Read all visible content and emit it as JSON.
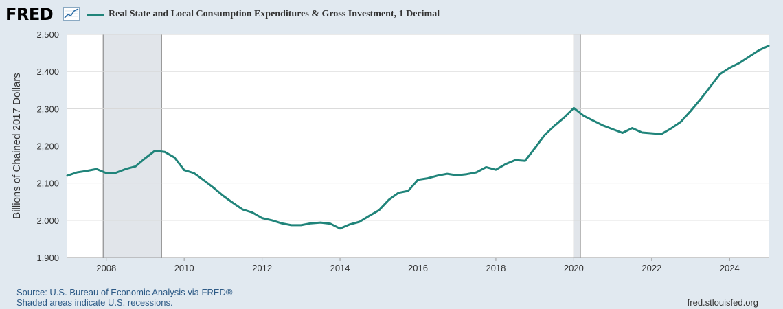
{
  "header": {
    "logo_text": "FRED",
    "legend_label": "Real State and Local Consumption Expenditures & Gross Investment, 1 Decimal"
  },
  "footer": {
    "source": "Source: U.S. Bureau of Economic Analysis via FRED®",
    "shaded_note": "Shaded areas indicate U.S. recessions.",
    "url": "fred.stlouisfed.org"
  },
  "colors": {
    "line": "#20847a",
    "background": "#e1e9f0",
    "plot_bg": "#ffffff",
    "recession": "#e1e5ea",
    "grid": "#d6d6d6"
  },
  "icons": [
    "fred-logo",
    "line-graph-icon"
  ],
  "chart_data": {
    "type": "line",
    "title": "Real State and Local Consumption Expenditures & Gross Investment, 1 Decimal",
    "xlabel": "",
    "ylabel": "Billions of Chained 2017 Dollars",
    "xlim": [
      2007.0,
      2025.0
    ],
    "ylim": [
      1900,
      2500
    ],
    "yticks": [
      1900,
      2000,
      2100,
      2200,
      2300,
      2400,
      2500
    ],
    "ytick_labels": [
      "1,900",
      "2,000",
      "2,100",
      "2,200",
      "2,300",
      "2,400",
      "2,500"
    ],
    "xticks": [
      2008,
      2010,
      2012,
      2014,
      2016,
      2018,
      2020,
      2022,
      2024
    ],
    "xtick_labels": [
      "2008",
      "2010",
      "2012",
      "2014",
      "2016",
      "2018",
      "2020",
      "2022",
      "2024"
    ],
    "grid": true,
    "recessions": [
      [
        2007.92,
        2009.42
      ],
      [
        2020.0,
        2020.17
      ]
    ],
    "series": [
      {
        "values": [
          [
            2007.0,
            2120
          ],
          [
            2007.25,
            2129
          ],
          [
            2007.5,
            2133
          ],
          [
            2007.75,
            2138
          ],
          [
            2008.0,
            2127
          ],
          [
            2008.25,
            2128
          ],
          [
            2008.5,
            2138
          ],
          [
            2008.75,
            2145
          ],
          [
            2009.0,
            2167
          ],
          [
            2009.25,
            2187
          ],
          [
            2009.5,
            2184
          ],
          [
            2009.75,
            2169
          ],
          [
            2010.0,
            2135
          ],
          [
            2010.25,
            2127
          ],
          [
            2010.5,
            2108
          ],
          [
            2010.75,
            2088
          ],
          [
            2011.0,
            2066
          ],
          [
            2011.25,
            2047
          ],
          [
            2011.5,
            2029
          ],
          [
            2011.75,
            2021
          ],
          [
            2012.0,
            2006
          ],
          [
            2012.25,
            2000
          ],
          [
            2012.5,
            1992
          ],
          [
            2012.75,
            1987
          ],
          [
            2013.0,
            1987
          ],
          [
            2013.25,
            1992
          ],
          [
            2013.5,
            1994
          ],
          [
            2013.75,
            1991
          ],
          [
            2014.0,
            1978
          ],
          [
            2014.25,
            1989
          ],
          [
            2014.5,
            1996
          ],
          [
            2014.75,
            2012
          ],
          [
            2015.0,
            2027
          ],
          [
            2015.25,
            2055
          ],
          [
            2015.5,
            2074
          ],
          [
            2015.75,
            2079
          ],
          [
            2016.0,
            2109
          ],
          [
            2016.25,
            2113
          ],
          [
            2016.5,
            2120
          ],
          [
            2016.75,
            2125
          ],
          [
            2017.0,
            2121
          ],
          [
            2017.25,
            2124
          ],
          [
            2017.5,
            2129
          ],
          [
            2017.75,
            2143
          ],
          [
            2018.0,
            2136
          ],
          [
            2018.25,
            2151
          ],
          [
            2018.5,
            2162
          ],
          [
            2018.75,
            2160
          ],
          [
            2019.0,
            2194
          ],
          [
            2019.25,
            2229
          ],
          [
            2019.5,
            2254
          ],
          [
            2019.75,
            2276
          ],
          [
            2020.0,
            2302
          ],
          [
            2020.25,
            2281
          ],
          [
            2020.5,
            2268
          ],
          [
            2020.75,
            2255
          ],
          [
            2021.0,
            2245
          ],
          [
            2021.25,
            2235
          ],
          [
            2021.5,
            2248
          ],
          [
            2021.75,
            2236
          ],
          [
            2022.0,
            2234
          ],
          [
            2022.25,
            2232
          ],
          [
            2022.5,
            2247
          ],
          [
            2022.75,
            2265
          ],
          [
            2023.0,
            2294
          ],
          [
            2023.25,
            2325
          ],
          [
            2023.5,
            2359
          ],
          [
            2023.75,
            2393
          ],
          [
            2024.0,
            2410
          ],
          [
            2024.25,
            2423
          ],
          [
            2024.5,
            2440
          ],
          [
            2024.75,
            2457
          ],
          [
            2025.0,
            2469
          ]
        ]
      }
    ]
  }
}
